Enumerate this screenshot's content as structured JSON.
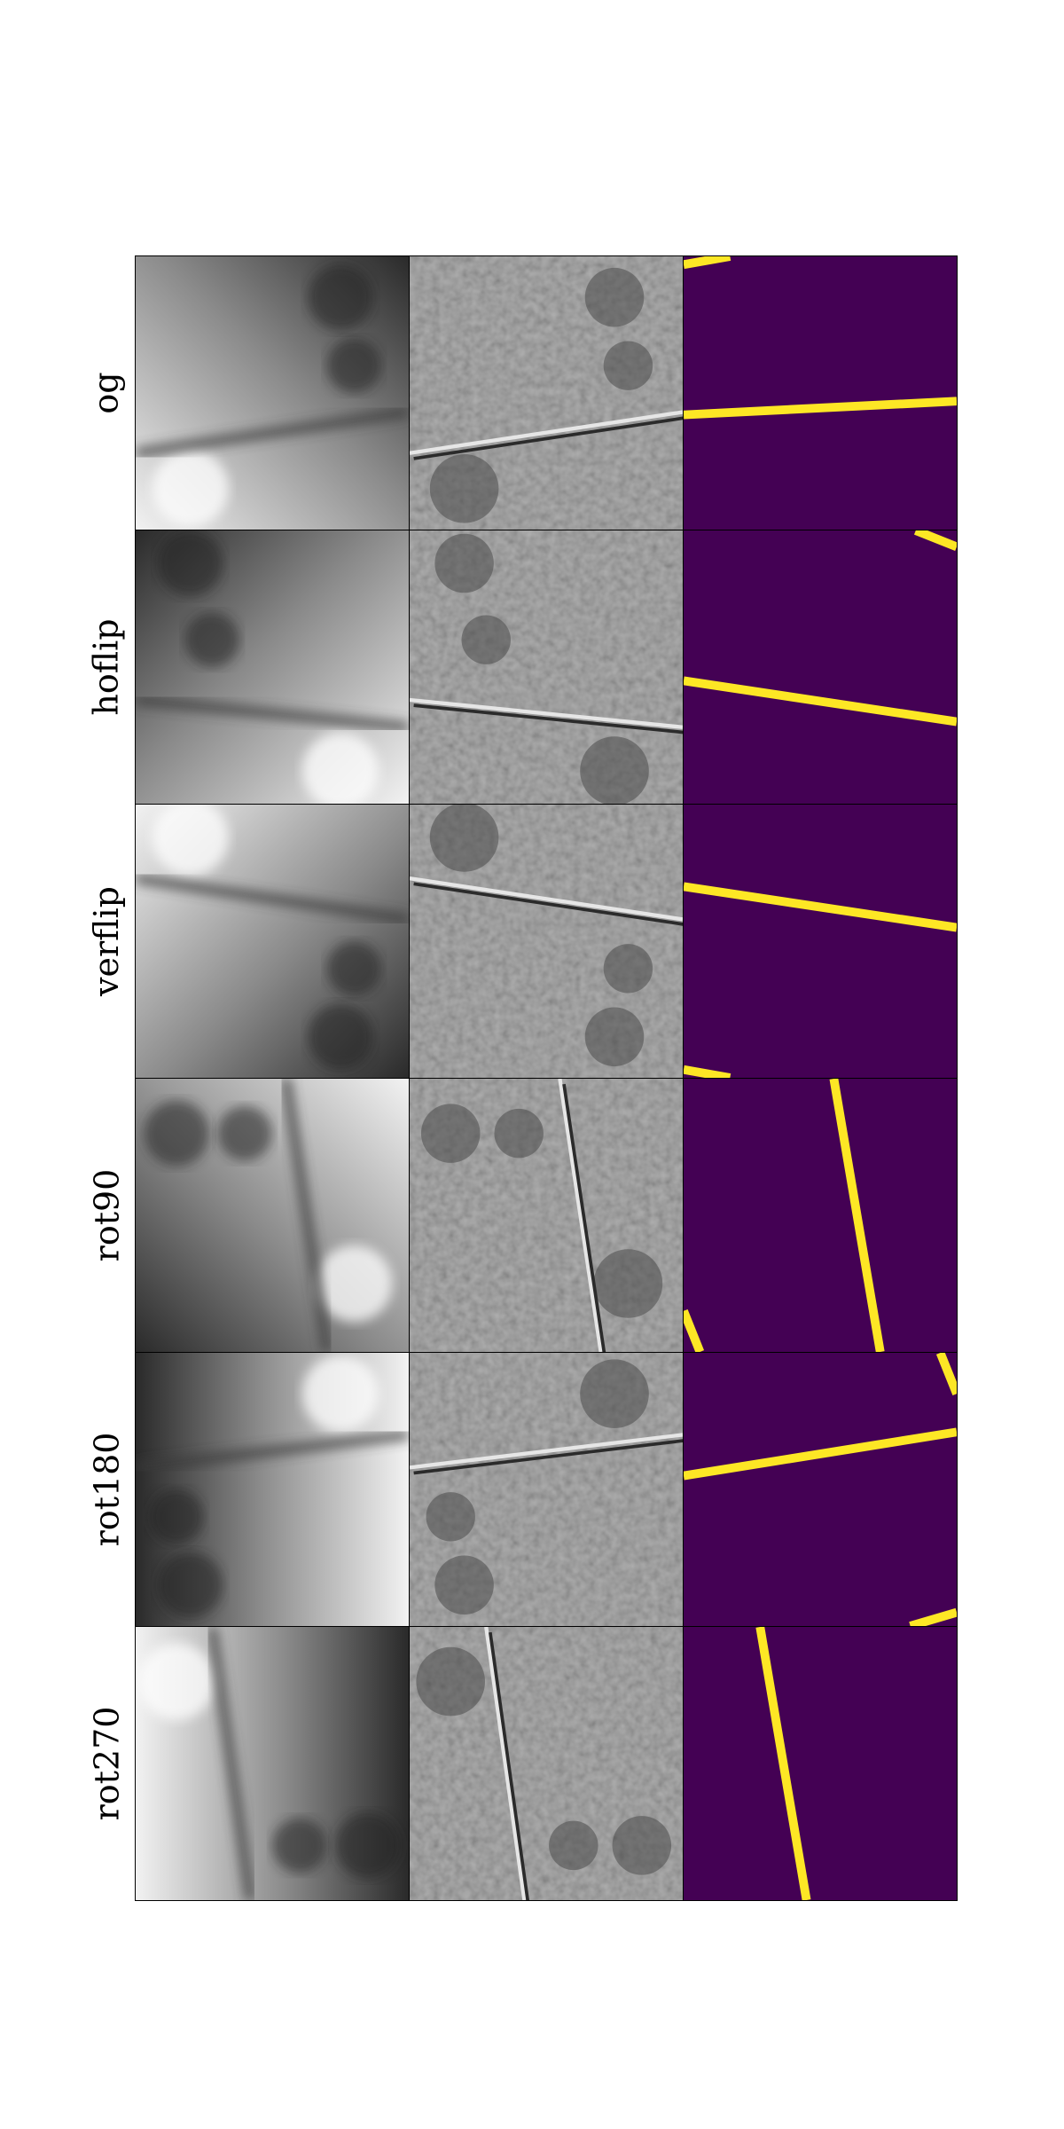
{
  "figure": {
    "rows": [
      {
        "label": "og",
        "mask_lines": [
          [
            [
              0,
              58
            ],
            [
              100,
              53
            ]
          ],
          [
            [
              0,
              3
            ],
            [
              17,
              0
            ]
          ]
        ]
      },
      {
        "label": "hoflip",
        "mask_lines": [
          [
            [
              0,
              55
            ],
            [
              100,
              70
            ]
          ],
          [
            [
              85,
              0
            ],
            [
              100,
              6
            ]
          ]
        ]
      },
      {
        "label": "verflip",
        "mask_lines": [
          [
            [
              0,
              30
            ],
            [
              100,
              45
            ]
          ],
          [
            [
              0,
              97
            ],
            [
              17,
              100
            ]
          ]
        ]
      },
      {
        "label": "rot90",
        "mask_lines": [
          [
            [
              55,
              0
            ],
            [
              72,
              100
            ]
          ],
          [
            [
              0,
              85
            ],
            [
              6,
              100
            ]
          ]
        ]
      },
      {
        "label": "rot180",
        "mask_lines": [
          [
            [
              0,
              45
            ],
            [
              100,
              29
            ]
          ],
          [
            [
              83,
              100
            ],
            [
              100,
              95
            ]
          ],
          [
            [
              94,
              0
            ],
            [
              100,
              15
            ]
          ]
        ]
      },
      {
        "label": "rot270",
        "mask_lines": [
          [
            [
              28,
              0
            ],
            [
              45,
              100
            ]
          ]
        ]
      }
    ],
    "column_kinds": [
      "elevation",
      "hillshade",
      "mask"
    ],
    "colors": {
      "mask_background": "#440154",
      "mask_line": "#fde725"
    }
  }
}
